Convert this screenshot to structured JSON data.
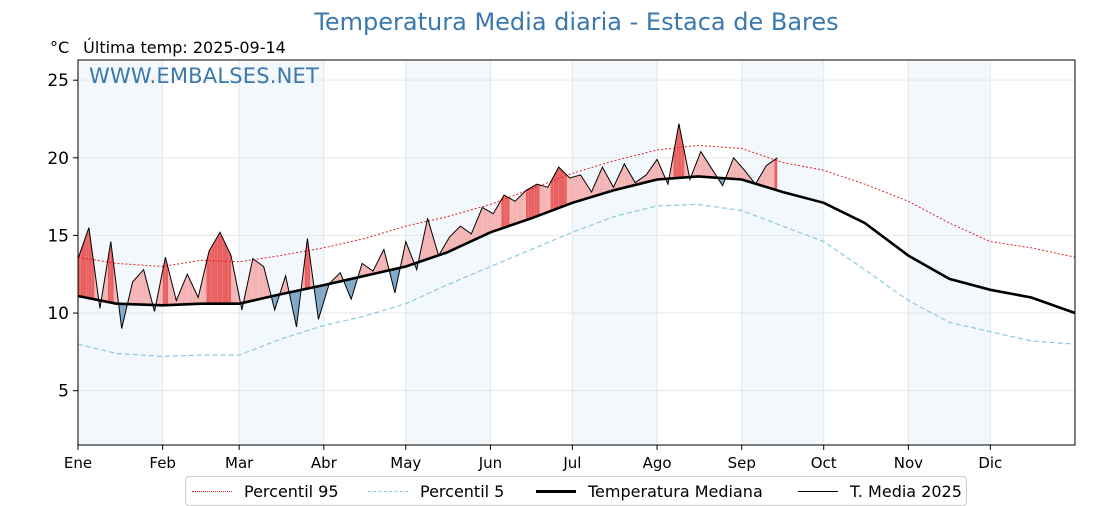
{
  "header": {
    "title": "Temperatura Media diaria - Estaca de Bares",
    "unit": "°C",
    "last_temp": "Última temp: 2025-09-14",
    "watermark": "WWW.EMBALSES.NET"
  },
  "colors": {
    "title": "#3a78ad",
    "p95": "#e02020",
    "p5": "#8ec9de",
    "median": "#000000",
    "year": "#000000",
    "fill_above": "#f4b4b4",
    "fill_above_strong": "#e86060",
    "fill_below": "#7fa8c8",
    "band": "#f3f8fc"
  },
  "chart_data": {
    "type": "line",
    "title": "Temperatura Media diaria - Estaca de Bares",
    "ylabel": "°C",
    "xlabel": "",
    "ylim": [
      1.5,
      26.3
    ],
    "xlim": [
      1,
      366
    ],
    "yticks": [
      5,
      10,
      15,
      20,
      25
    ],
    "months": [
      {
        "label": "Ene",
        "day": 1
      },
      {
        "label": "Feb",
        "day": 32
      },
      {
        "label": "Mar",
        "day": 60
      },
      {
        "label": "Abr",
        "day": 91
      },
      {
        "label": "May",
        "day": 121
      },
      {
        "label": "Jun",
        "day": 152
      },
      {
        "label": "Jul",
        "day": 182
      },
      {
        "label": "Ago",
        "day": 213
      },
      {
        "label": "Sep",
        "day": 244
      },
      {
        "label": "Oct",
        "day": 274
      },
      {
        "label": "Nov",
        "day": 305
      },
      {
        "label": "Dic",
        "day": 335
      }
    ],
    "grid": true,
    "legend_position": "bottom-center",
    "series": [
      {
        "name": "Percentil 95",
        "style": "dotted",
        "x": [
          1,
          15,
          32,
          46,
          60,
          75,
          91,
          106,
          121,
          136,
          152,
          167,
          182,
          197,
          213,
          228,
          244,
          259,
          274,
          289,
          305,
          320,
          335,
          350,
          366
        ],
        "y": [
          13.6,
          13.2,
          13.0,
          13.4,
          13.3,
          13.7,
          14.2,
          14.8,
          15.6,
          16.2,
          17.0,
          18.0,
          19.0,
          19.8,
          20.5,
          20.8,
          20.6,
          19.7,
          19.2,
          18.3,
          17.2,
          15.8,
          14.6,
          14.2,
          13.6
        ]
      },
      {
        "name": "Percentil 5",
        "style": "dashed",
        "x": [
          1,
          15,
          32,
          46,
          60,
          75,
          91,
          106,
          121,
          136,
          152,
          167,
          182,
          197,
          213,
          228,
          244,
          259,
          274,
          289,
          305,
          320,
          335,
          350,
          366
        ],
        "y": [
          8.0,
          7.4,
          7.2,
          7.3,
          7.3,
          8.3,
          9.2,
          9.8,
          10.6,
          11.8,
          13.0,
          14.1,
          15.2,
          16.2,
          16.9,
          17.0,
          16.6,
          15.6,
          14.6,
          12.8,
          10.8,
          9.4,
          8.8,
          8.2,
          8.0
        ]
      },
      {
        "name": "Temperatura Mediana",
        "style": "thick",
        "x": [
          1,
          15,
          32,
          46,
          60,
          75,
          91,
          106,
          121,
          136,
          152,
          167,
          182,
          197,
          213,
          228,
          244,
          259,
          274,
          289,
          305,
          320,
          335,
          350,
          366
        ],
        "y": [
          11.1,
          10.6,
          10.5,
          10.6,
          10.6,
          11.2,
          11.8,
          12.4,
          13.0,
          13.9,
          15.2,
          16.1,
          17.1,
          17.9,
          18.6,
          18.8,
          18.6,
          17.8,
          17.1,
          15.8,
          13.7,
          12.2,
          11.5,
          11.0,
          10.0
        ]
      },
      {
        "name": "T. Media 2025",
        "style": "thin",
        "x": [
          1,
          5,
          9,
          13,
          17,
          21,
          25,
          29,
          33,
          37,
          41,
          45,
          49,
          53,
          57,
          61,
          65,
          69,
          73,
          77,
          81,
          85,
          89,
          93,
          97,
          101,
          105,
          109,
          113,
          117,
          121,
          125,
          129,
          133,
          137,
          141,
          145,
          149,
          153,
          157,
          161,
          165,
          169,
          173,
          177,
          181,
          185,
          189,
          193,
          197,
          201,
          205,
          209,
          213,
          217,
          221,
          225,
          229,
          233,
          237,
          241,
          245,
          249,
          253,
          257
        ],
        "y": [
          13.5,
          15.5,
          10.3,
          14.6,
          9.0,
          12.0,
          12.8,
          10.1,
          13.6,
          10.8,
          12.5,
          11.0,
          14.0,
          15.2,
          13.7,
          10.2,
          13.5,
          13.0,
          10.2,
          12.4,
          9.1,
          14.8,
          9.6,
          11.9,
          12.6,
          10.9,
          13.2,
          12.7,
          14.1,
          11.3,
          14.6,
          12.8,
          16.1,
          13.7,
          14.9,
          15.6,
          15.1,
          16.8,
          16.4,
          17.6,
          17.2,
          17.9,
          18.3,
          18.1,
          19.4,
          18.7,
          18.9,
          17.8,
          19.4,
          18.1,
          19.6,
          18.4,
          18.9,
          19.9,
          18.3,
          22.2,
          18.6,
          20.4,
          19.3,
          18.2,
          20.0,
          19.2,
          18.3,
          19.5,
          20.0
        ]
      }
    ]
  },
  "legend": {
    "p95": "Percentil 95",
    "p5": "Percentil 5",
    "median": "Temperatura Mediana",
    "year": "T. Media 2025"
  }
}
